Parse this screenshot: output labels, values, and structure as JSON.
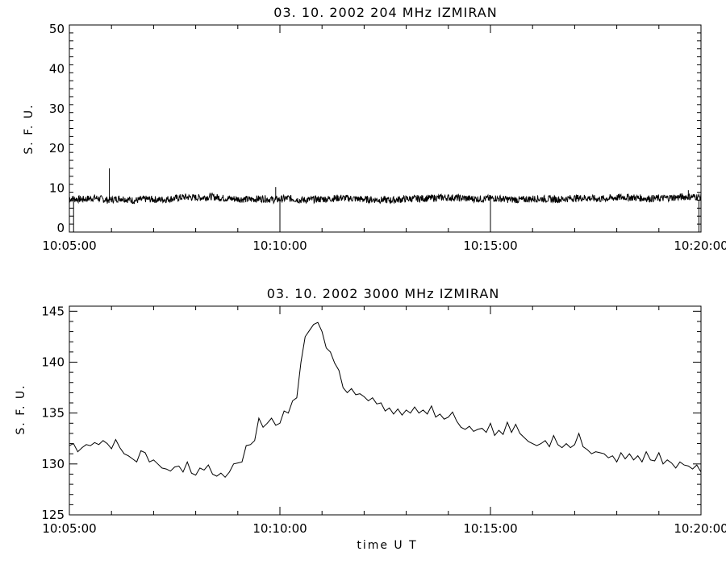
{
  "chart_data": [
    {
      "type": "line",
      "title": "03.  10.  2002    204 MHz    IZMIRAN",
      "ylabel": "S. F. U.",
      "xlabel": "",
      "ylim": [
        -1,
        51
      ],
      "yticks": [
        0,
        10,
        20,
        30,
        40,
        50
      ],
      "x_major_labels": [
        "10:05:00",
        "10:10:00",
        "10:15:00",
        "10:20:00"
      ],
      "xlim_minutes": [
        0,
        15
      ],
      "series": [
        {
          "noise_base": 7.4,
          "noise_amp": 0.9,
          "spikes_up": [
            [
              0.95,
              15
            ],
            [
              4.9,
              10.3
            ],
            [
              14.7,
              9.5
            ]
          ],
          "spikes_down": [
            [
              0.1,
              -1
            ],
            [
              5.0,
              -1
            ],
            [
              10.0,
              -1
            ],
            [
              14.95,
              -1
            ]
          ],
          "values": [
            7.4,
            7.2,
            7.6,
            7.0,
            7.5,
            6.9,
            7.3,
            7.1,
            7.4,
            7.8,
            7.6,
            7.9,
            7.5,
            7.3,
            7.2,
            7.4,
            7.1,
            7.5,
            7.0,
            7.2,
            7.3,
            7.6,
            7.4,
            7.2,
            7.1,
            7.0,
            7.3,
            7.4,
            7.5,
            7.7,
            7.6,
            7.4,
            7.3,
            7.5,
            7.2,
            7.1,
            7.4,
            7.3,
            7.2,
            7.5,
            7.6,
            7.3,
            7.5,
            7.8,
            7.6,
            7.4,
            7.5,
            7.7,
            7.9,
            7.8
          ]
        }
      ]
    },
    {
      "type": "line",
      "title": "03.  10.  2002    3000 MHz    IZMIRAN",
      "ylabel": "S. F. U.",
      "xlabel": "time  U T",
      "ylim": [
        125,
        145.5
      ],
      "yticks": [
        125,
        130,
        135,
        140,
        145
      ],
      "x_major_labels": [
        "10:05:00",
        "10:10:00",
        "10:15:00",
        "10:20:00"
      ],
      "xlim_minutes": [
        0,
        15
      ],
      "series": [
        {
          "x_minutes": [
            0.0,
            0.1,
            0.2,
            0.3,
            0.4,
            0.5,
            0.6,
            0.7,
            0.8,
            0.9,
            1.0,
            1.1,
            1.2,
            1.3,
            1.4,
            1.5,
            1.6,
            1.7,
            1.8,
            1.9,
            2.0,
            2.1,
            2.2,
            2.3,
            2.4,
            2.5,
            2.6,
            2.7,
            2.8,
            2.9,
            3.0,
            3.1,
            3.2,
            3.3,
            3.4,
            3.5,
            3.6,
            3.7,
            3.8,
            3.9,
            4.0,
            4.1,
            4.2,
            4.3,
            4.4,
            4.5,
            4.6,
            4.7,
            4.8,
            4.9,
            5.0,
            5.1,
            5.2,
            5.3,
            5.4,
            5.5,
            5.6,
            5.7,
            5.8,
            5.9,
            6.0,
            6.1,
            6.2,
            6.3,
            6.4,
            6.5,
            6.6,
            6.7,
            6.8,
            6.9,
            7.0,
            7.1,
            7.2,
            7.3,
            7.4,
            7.5,
            7.6,
            7.7,
            7.8,
            7.9,
            8.0,
            8.1,
            8.2,
            8.3,
            8.4,
            8.5,
            8.6,
            8.7,
            8.8,
            8.9,
            9.0,
            9.1,
            9.2,
            9.3,
            9.4,
            9.5,
            9.6,
            9.7,
            9.8,
            9.9,
            10.0,
            10.1,
            10.2,
            10.3,
            10.4,
            10.5,
            10.6,
            10.7,
            10.8,
            10.9,
            11.0,
            11.1,
            11.2,
            11.3,
            11.4,
            11.5,
            11.6,
            11.7,
            11.8,
            11.9,
            12.0,
            12.1,
            12.2,
            12.3,
            12.4,
            12.5,
            12.6,
            12.7,
            12.8,
            12.9,
            13.0,
            13.1,
            13.2,
            13.3,
            13.4,
            13.5,
            13.6,
            13.7,
            13.8,
            13.9,
            14.0,
            14.1,
            14.2,
            14.3,
            14.4,
            14.5,
            14.6,
            14.7,
            14.8,
            14.9,
            15.0
          ],
          "values": [
            131.8,
            132.0,
            131.2,
            131.6,
            131.9,
            131.8,
            132.1,
            131.9,
            132.3,
            132.0,
            131.5,
            132.4,
            131.6,
            131.0,
            130.8,
            130.5,
            130.2,
            131.3,
            131.1,
            130.2,
            130.4,
            130.0,
            129.6,
            129.5,
            129.3,
            129.7,
            129.8,
            129.2,
            130.2,
            129.1,
            128.9,
            129.6,
            129.4,
            129.9,
            129.0,
            128.8,
            129.1,
            128.7,
            129.2,
            130.0,
            130.1,
            130.2,
            131.8,
            131.9,
            132.3,
            134.5,
            133.6,
            134.0,
            134.5,
            133.8,
            134.0,
            135.2,
            135.0,
            136.2,
            136.5,
            140.0,
            142.5,
            143.1,
            143.7,
            143.9,
            143.0,
            141.4,
            141.0,
            139.9,
            139.2,
            137.5,
            137.0,
            137.4,
            136.8,
            136.9,
            136.6,
            136.2,
            136.5,
            135.9,
            136.0,
            135.2,
            135.5,
            134.9,
            135.4,
            134.8,
            135.3,
            135.0,
            135.6,
            135.0,
            135.3,
            134.9,
            135.7,
            134.6,
            134.9,
            134.4,
            134.6,
            135.1,
            134.2,
            133.6,
            133.4,
            133.7,
            133.2,
            133.4,
            133.5,
            133.1,
            134.0,
            132.8,
            133.3,
            132.9,
            134.1,
            133.1,
            133.9,
            133.0,
            132.6,
            132.2,
            132.0,
            131.8,
            132.0,
            132.3,
            131.7,
            132.8,
            131.9,
            131.6,
            132.0,
            131.6,
            131.9,
            133.0,
            131.7,
            131.4,
            131.0,
            131.2,
            131.1,
            131.0,
            130.6,
            130.8,
            130.2,
            131.1,
            130.5,
            131.0,
            130.4,
            130.8,
            130.2,
            131.2,
            130.4,
            130.3,
            131.1,
            130.0,
            130.4,
            130.1,
            129.6,
            130.2,
            129.9,
            129.8,
            129.5,
            129.9,
            129.2
          ]
        }
      ]
    }
  ]
}
